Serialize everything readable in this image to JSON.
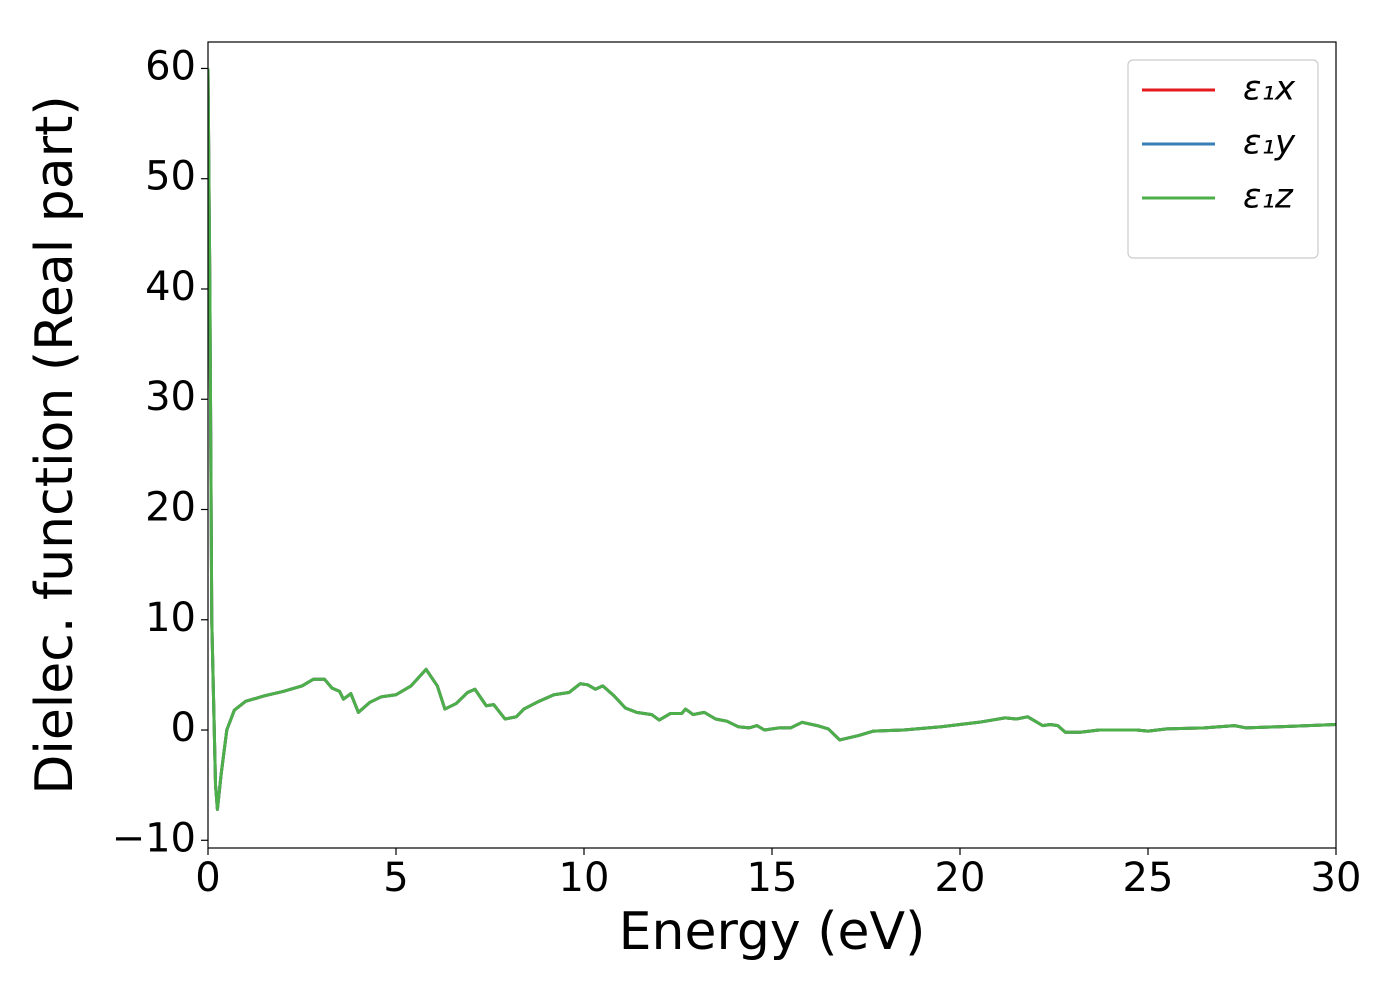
{
  "chart_data": {
    "type": "line",
    "xlabel": "Energy (eV)",
    "ylabel": "Dielec. function (Real part)",
    "x": [
      0.0,
      0.05,
      0.1,
      0.2,
      0.25,
      0.35,
      0.5,
      0.7,
      1.0,
      1.5,
      2.0,
      2.5,
      2.8,
      3.1,
      3.3,
      3.5,
      3.6,
      3.8,
      4.0,
      4.3,
      4.6,
      5.0,
      5.4,
      5.8,
      6.1,
      6.3,
      6.6,
      6.9,
      7.1,
      7.4,
      7.6,
      7.9,
      8.2,
      8.4,
      8.8,
      9.2,
      9.6,
      9.9,
      10.1,
      10.3,
      10.5,
      10.8,
      11.1,
      11.4,
      11.8,
      12.0,
      12.3,
      12.6,
      12.7,
      12.9,
      13.2,
      13.5,
      13.8,
      14.1,
      14.4,
      14.6,
      14.8,
      15.2,
      15.5,
      15.8,
      16.2,
      16.5,
      16.8,
      17.3,
      17.7,
      18.5,
      19.5,
      20.5,
      21.2,
      21.5,
      21.8,
      22.0,
      22.2,
      22.4,
      22.6,
      22.8,
      23.2,
      23.7,
      24.2,
      24.7,
      25.0,
      25.5,
      26.5,
      27.3,
      27.6,
      28.5,
      30.0
    ],
    "series": [
      {
        "name": "ε₁x",
        "color": "#e41a1c",
        "values": [
          60,
          40,
          10,
          -5,
          -7.2,
          -4,
          0,
          1.8,
          2.6,
          3.1,
          3.5,
          4.0,
          4.6,
          4.6,
          3.8,
          3.5,
          2.8,
          3.3,
          1.6,
          2.5,
          3.0,
          3.2,
          4.0,
          5.5,
          4.0,
          1.9,
          2.4,
          3.4,
          3.7,
          2.2,
          2.3,
          1.0,
          1.2,
          1.9,
          2.6,
          3.2,
          3.4,
          4.2,
          4.1,
          3.7,
          4.0,
          3.1,
          2.0,
          1.6,
          1.4,
          0.9,
          1.5,
          1.5,
          1.9,
          1.4,
          1.6,
          1.0,
          0.8,
          0.3,
          0.2,
          0.4,
          0,
          0.2,
          0.2,
          0.7,
          0.4,
          0.1,
          -0.9,
          -0.5,
          -0.1,
          0,
          0.3,
          0.7,
          1.1,
          1.0,
          1.2,
          0.8,
          0.4,
          0.5,
          0.4,
          -0.2,
          -0.2,
          0,
          0,
          0,
          -0.1,
          0.1,
          0.2,
          0.4,
          0.2,
          0.3,
          0.5
        ]
      },
      {
        "name": "ε₁y",
        "color": "#377eb8",
        "values": [
          60,
          40,
          10,
          -5,
          -7.2,
          -4,
          0,
          1.8,
          2.6,
          3.1,
          3.5,
          4.0,
          4.6,
          4.6,
          3.8,
          3.5,
          2.8,
          3.3,
          1.6,
          2.5,
          3.0,
          3.2,
          4.0,
          5.5,
          4.0,
          1.9,
          2.4,
          3.4,
          3.7,
          2.2,
          2.3,
          1.0,
          1.2,
          1.9,
          2.6,
          3.2,
          3.4,
          4.2,
          4.1,
          3.7,
          4.0,
          3.1,
          2.0,
          1.6,
          1.4,
          0.9,
          1.5,
          1.5,
          1.9,
          1.4,
          1.6,
          1.0,
          0.8,
          0.3,
          0.2,
          0.4,
          0,
          0.2,
          0.2,
          0.7,
          0.4,
          0.1,
          -0.9,
          -0.5,
          -0.1,
          0,
          0.3,
          0.7,
          1.1,
          1.0,
          1.2,
          0.8,
          0.4,
          0.5,
          0.4,
          -0.2,
          -0.2,
          0,
          0,
          0,
          -0.1,
          0.1,
          0.2,
          0.4,
          0.2,
          0.3,
          0.5
        ]
      },
      {
        "name": "ε₁z",
        "color": "#4daf4a",
        "values": [
          60,
          40,
          10,
          -5,
          -7.2,
          -4,
          0,
          1.8,
          2.6,
          3.1,
          3.5,
          4.0,
          4.6,
          4.6,
          3.8,
          3.5,
          2.8,
          3.3,
          1.6,
          2.5,
          3.0,
          3.2,
          4.0,
          5.5,
          4.0,
          1.9,
          2.4,
          3.4,
          3.7,
          2.2,
          2.3,
          1.0,
          1.2,
          1.9,
          2.6,
          3.2,
          3.4,
          4.2,
          4.1,
          3.7,
          4.0,
          3.1,
          2.0,
          1.6,
          1.4,
          0.9,
          1.5,
          1.5,
          1.9,
          1.4,
          1.6,
          1.0,
          0.8,
          0.3,
          0.2,
          0.4,
          0,
          0.2,
          0.2,
          0.7,
          0.4,
          0.1,
          -0.9,
          -0.5,
          -0.1,
          0,
          0.3,
          0.7,
          1.1,
          1.0,
          1.2,
          0.8,
          0.4,
          0.5,
          0.4,
          -0.2,
          -0.2,
          0,
          0,
          0,
          -0.1,
          0.1,
          0.2,
          0.4,
          0.2,
          0.3,
          0.5
        ]
      }
    ],
    "xlim": [
      0,
      30
    ],
    "xticks": [
      0,
      5,
      10,
      15,
      20,
      25,
      30
    ],
    "ylim": [
      -10.7,
      62.4
    ],
    "yticks": [
      {
        "value": -10,
        "label": "−10"
      },
      0,
      10,
      20,
      30,
      40,
      50,
      60
    ],
    "grid": false,
    "legend": "upper right"
  }
}
